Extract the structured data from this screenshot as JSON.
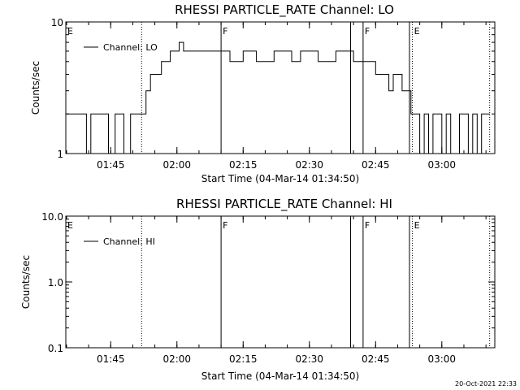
{
  "timestamp": "20-Oct-2021 22:33",
  "event_labels": {
    "E": "E",
    "F": "F"
  },
  "chart_data": [
    {
      "type": "line",
      "title": "RHESSI PARTICLE_RATE Channel: LO",
      "xlabel": "Start Time (04-Mar-14 01:34:50)",
      "ylabel": "Counts/sec",
      "y_scale": "log",
      "ylim": [
        1,
        10
      ],
      "y_ticks": [
        1,
        10
      ],
      "y_tick_labels": [
        "1",
        "10"
      ],
      "xlim": [
        "01:34:50",
        "03:12:00"
      ],
      "x_ticks": [
        "01:45",
        "02:00",
        "02:15",
        "02:30",
        "02:45",
        "03:00"
      ],
      "grid": false,
      "legend": {
        "placement": "top-left",
        "entries": [
          "Channel: LO"
        ]
      },
      "solid_markers": [
        "02:10:00",
        "02:39:20",
        "02:42:10",
        "02:52:40"
      ],
      "dotted_markers": [
        "01:52:00",
        "02:53:20",
        "03:10:50"
      ],
      "marker_labels": [
        {
          "text": "E",
          "x": "01:34:50"
        },
        {
          "text": "F",
          "x": "02:10:00"
        },
        {
          "text": "F",
          "x": "02:42:10"
        },
        {
          "text": "E",
          "x": "02:53:20"
        }
      ],
      "series": [
        {
          "name": "Channel: LO",
          "x": [
            "01:34:50",
            "01:39:30",
            "01:40:30",
            "01:44:30",
            "01:46:00",
            "01:47:30",
            "01:48:00",
            "01:49:30",
            "01:50:00",
            "01:52:00",
            "01:53:00",
            "01:54:00",
            "01:55:00",
            "01:56:30",
            "01:57:30",
            "01:58:30",
            "01:59:30",
            "02:00:30",
            "02:01:30",
            "02:03:00",
            "02:05:00",
            "02:07:00",
            "02:09:00",
            "02:10:00",
            "02:11:00",
            "02:12:00",
            "02:13:30",
            "02:15:00",
            "02:16:30",
            "02:18:00",
            "02:20:00",
            "02:22:00",
            "02:24:00",
            "02:26:00",
            "02:28:00",
            "02:30:00",
            "02:32:00",
            "02:34:00",
            "02:36:00",
            "02:38:00",
            "02:40:00",
            "02:42:00",
            "02:44:00",
            "02:45:00",
            "02:46:00",
            "02:47:00",
            "02:48:00",
            "02:49:00",
            "02:50:00",
            "02:51:00",
            "02:52:00",
            "02:53:00",
            "02:54:00",
            "02:55:00",
            "02:56:00",
            "02:57:00",
            "02:58:00",
            "02:59:00",
            "03:00:00",
            "03:01:00",
            "03:02:00",
            "03:03:00",
            "03:04:00",
            "03:05:00",
            "03:06:00",
            "03:07:00",
            "03:08:00",
            "03:09:00",
            "03:10:30"
          ],
          "values": [
            2,
            1,
            2,
            1,
            2,
            2,
            1,
            2,
            2,
            2,
            3,
            4,
            4,
            5,
            5,
            6,
            6,
            7,
            6,
            6,
            6,
            6,
            6,
            6,
            6,
            5,
            5,
            6,
            6,
            5,
            5,
            6,
            6,
            5,
            6,
            6,
            5,
            5,
            6,
            6,
            5,
            5,
            5,
            4,
            4,
            4,
            3,
            4,
            4,
            3,
            3,
            2,
            2,
            1,
            2,
            1,
            2,
            2,
            1,
            2,
            1,
            1,
            2,
            2,
            1,
            2,
            1,
            2,
            2
          ]
        }
      ]
    },
    {
      "type": "line",
      "title": "RHESSI PARTICLE_RATE Channel: HI",
      "xlabel": "Start Time (04-Mar-14 01:34:50)",
      "ylabel": "Counts/sec",
      "y_scale": "log",
      "ylim": [
        0.1,
        10.0
      ],
      "y_ticks": [
        0.1,
        1.0,
        10.0
      ],
      "y_tick_labels": [
        "0.1",
        "1.0",
        "10.0"
      ],
      "xlim": [
        "01:34:50",
        "03:12:00"
      ],
      "x_ticks": [
        "01:45",
        "02:00",
        "02:15",
        "02:30",
        "02:45",
        "03:00"
      ],
      "grid": false,
      "legend": {
        "placement": "top-left",
        "entries": [
          "Channel: HI"
        ]
      },
      "solid_markers": [
        "02:10:00",
        "02:39:20",
        "02:42:10",
        "02:52:40"
      ],
      "dotted_markers": [
        "01:52:00",
        "02:53:20",
        "03:10:50"
      ],
      "marker_labels": [
        {
          "text": "E",
          "x": "01:34:50"
        },
        {
          "text": "F",
          "x": "02:10:00"
        },
        {
          "text": "F",
          "x": "02:42:10"
        },
        {
          "text": "E",
          "x": "02:53:20"
        }
      ],
      "series": [
        {
          "name": "Channel: HI",
          "x": [],
          "values": []
        }
      ]
    }
  ]
}
